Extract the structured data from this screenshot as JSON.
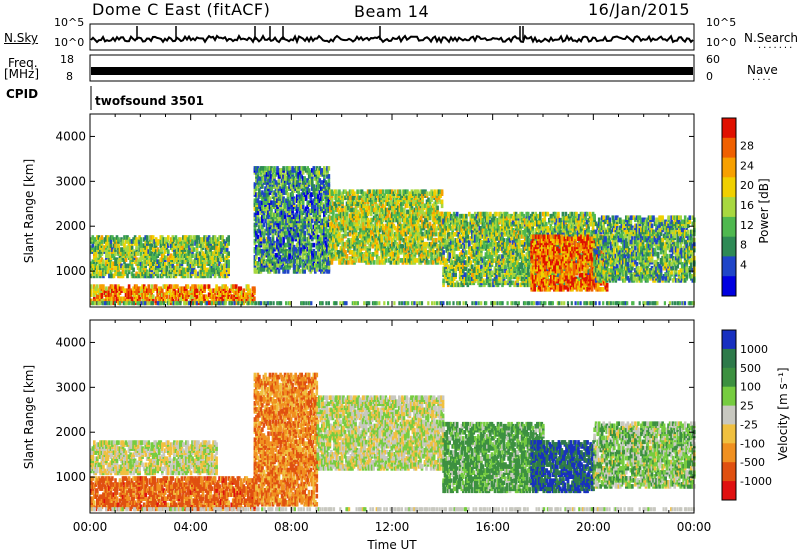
{
  "header": {
    "station": "Dome C East (fitACF)",
    "beam": "Beam 14",
    "date": "16/Jan/2015"
  },
  "left_labels": {
    "nsky": "N.Sky",
    "freq_line1": "Freq.",
    "freq_line2": "[MHz]",
    "cpid": "CPID"
  },
  "right_labels": {
    "nsearch": "N.Search",
    "nave": "Nave"
  },
  "strip_ticks": {
    "nsky_left": [
      "10^5",
      "10^0"
    ],
    "nsky_right": [
      "10^5",
      "10^0"
    ],
    "freq_left": [
      "18",
      "8"
    ],
    "nave_right": [
      "60",
      "0"
    ]
  },
  "cpid_text": "twofsound 3501",
  "chart_data": [
    {
      "type": "heatmap",
      "name": "power-panel",
      "ylabel": "Slant Range [km]",
      "yticks": [
        1000,
        2000,
        3000,
        4000
      ],
      "ylim": [
        200,
        4500
      ],
      "xlim": [
        0,
        24
      ],
      "colorbar_label": "Power [dB]",
      "colorbar_ticks": [
        "28",
        "24",
        "20",
        "16",
        "12",
        "8",
        "4"
      ],
      "colorbar_colors": [
        "#0000e0",
        "#1f45c8",
        "#2e8a55",
        "#4fb84f",
        "#a8d840",
        "#f0d000",
        "#f7a000",
        "#f06000",
        "#e01000"
      ],
      "echo_regions": [
        {
          "t0": 0.0,
          "t1": 6.5,
          "r0": 300,
          "r1": 700,
          "value": 24
        },
        {
          "t0": 0.0,
          "t1": 5.5,
          "r0": 900,
          "r1": 1800,
          "value": 14
        },
        {
          "t0": 6.5,
          "t1": 9.5,
          "r0": 1000,
          "r1": 3300,
          "value": 10
        },
        {
          "t0": 9.5,
          "t1": 14.0,
          "r0": 1200,
          "r1": 2800,
          "value": 16
        },
        {
          "t0": 14.0,
          "t1": 20.0,
          "r0": 700,
          "r1": 2300,
          "value": 14
        },
        {
          "t0": 17.5,
          "t1": 20.5,
          "r0": 600,
          "r1": 1800,
          "value": 26
        },
        {
          "t0": 20.0,
          "t1": 24.0,
          "r0": 800,
          "r1": 2200,
          "value": 12
        }
      ]
    },
    {
      "type": "heatmap",
      "name": "velocity-panel",
      "ylabel": "Slant Range [km]",
      "yticks": [
        1000,
        2000,
        3000,
        4000
      ],
      "ylim": [
        200,
        4500
      ],
      "xlim": [
        0,
        24
      ],
      "xticks": [
        "00:00",
        "04:00",
        "08:00",
        "12:00",
        "16:00",
        "20:00",
        "00:00"
      ],
      "xlabel": "Time UT",
      "colorbar_label": "Velocity [m s⁻¹]",
      "colorbar_ticks": [
        "1000",
        "500",
        "100",
        "25",
        "-25",
        "-100",
        "-500",
        "-1000"
      ],
      "colorbar_colors": [
        "#1830c0",
        "#2e7a4a",
        "#3c9040",
        "#76cc40",
        "#c8c8c0",
        "#f0c040",
        "#f09020",
        "#e05010",
        "#e01010"
      ],
      "echo_regions": [
        {
          "t0": 0.0,
          "t1": 6.5,
          "r0": 300,
          "r1": 1000,
          "value": -300
        },
        {
          "t0": 0.0,
          "t1": 5.0,
          "r0": 1100,
          "r1": 1800,
          "value": 0
        },
        {
          "t0": 6.5,
          "t1": 9.0,
          "r0": 400,
          "r1": 3300,
          "value": -200
        },
        {
          "t0": 9.0,
          "t1": 14.0,
          "r0": 1200,
          "r1": 2800,
          "value": 10
        },
        {
          "t0": 14.0,
          "t1": 18.0,
          "r0": 700,
          "r1": 2200,
          "value": 150
        },
        {
          "t0": 17.5,
          "t1": 20.0,
          "r0": 700,
          "r1": 1800,
          "value": 700
        },
        {
          "t0": 20.0,
          "t1": 24.0,
          "r0": 800,
          "r1": 2200,
          "value": 60
        }
      ]
    }
  ]
}
